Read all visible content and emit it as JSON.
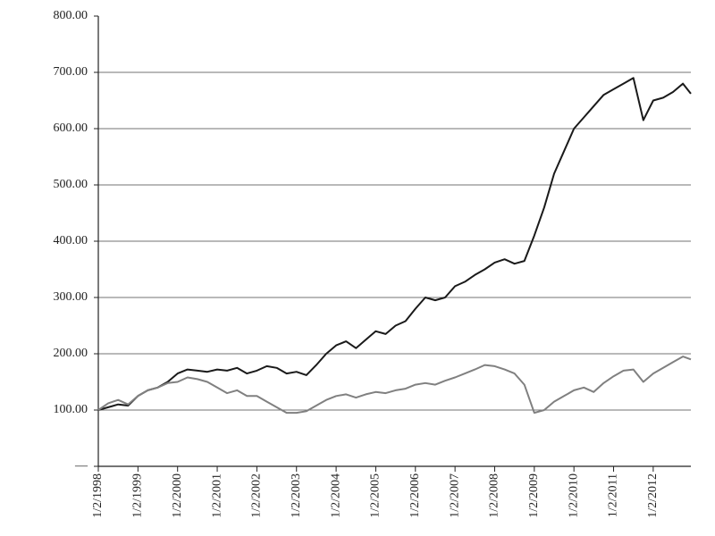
{
  "chart_data": {
    "type": "line",
    "x": [
      1998,
      1998.25,
      1998.5,
      1998.75,
      1999,
      1999.25,
      1999.5,
      1999.75,
      2000,
      2000.25,
      2000.5,
      2000.75,
      2001,
      2001.25,
      2001.5,
      2001.75,
      2002,
      2002.25,
      2002.5,
      2002.75,
      2003,
      2003.25,
      2003.5,
      2003.75,
      2004,
      2004.25,
      2004.5,
      2004.75,
      2005,
      2005.25,
      2005.5,
      2005.75,
      2006,
      2006.25,
      2006.5,
      2006.75,
      2007,
      2007.25,
      2007.5,
      2007.75,
      2008,
      2008.25,
      2008.5,
      2008.75,
      2009,
      2009.25,
      2009.5,
      2009.75,
      2010,
      2010.25,
      2010.5,
      2010.75,
      2011,
      2011.25,
      2011.5,
      2011.75,
      2012,
      2012.25,
      2012.5,
      2012.75,
      2012.95
    ],
    "series": [
      {
        "color": "#1a1a1a",
        "values": [
          100,
          105,
          110,
          108,
          125,
          135,
          140,
          150,
          165,
          172,
          170,
          168,
          172,
          170,
          175,
          165,
          170,
          178,
          175,
          165,
          168,
          162,
          180,
          200,
          215,
          222,
          210,
          225,
          240,
          235,
          250,
          258,
          280,
          300,
          295,
          300,
          320,
          328,
          340,
          350,
          362,
          368,
          360,
          365,
          410,
          460,
          520,
          560,
          600,
          620,
          640,
          660,
          670,
          680,
          690,
          615,
          650,
          655,
          665,
          680,
          662
        ]
      },
      {
        "color": "#808080",
        "values": [
          100,
          112,
          118,
          110,
          125,
          135,
          140,
          148,
          150,
          158,
          155,
          150,
          140,
          130,
          135,
          125,
          125,
          115,
          105,
          95,
          95,
          98,
          108,
          118,
          125,
          128,
          122,
          128,
          132,
          130,
          135,
          138,
          145,
          148,
          145,
          152,
          158,
          165,
          172,
          180,
          178,
          172,
          165,
          145,
          95,
          100,
          115,
          125,
          135,
          140,
          132,
          148,
          160,
          170,
          172,
          150,
          165,
          175,
          185,
          195,
          190
        ]
      }
    ],
    "xlim": [
      1998,
      2012.95
    ],
    "xticks": [
      {
        "value": 1998,
        "label": "1/2/1998"
      },
      {
        "value": 1999,
        "label": "1/2/1999"
      },
      {
        "value": 2000,
        "label": "1/2/2000"
      },
      {
        "value": 2001,
        "label": "1/2/2001"
      },
      {
        "value": 2002,
        "label": "1/2/2002"
      },
      {
        "value": 2003,
        "label": "1/2/2003"
      },
      {
        "value": 2004,
        "label": "1/2/2004"
      },
      {
        "value": 2005,
        "label": "1/2/2005"
      },
      {
        "value": 2006,
        "label": "1/2/2006"
      },
      {
        "value": 2007,
        "label": "1/2/2007"
      },
      {
        "value": 2008,
        "label": "1/2/2008"
      },
      {
        "value": 2009,
        "label": "1/2/2009"
      },
      {
        "value": 2010,
        "label": "1/2/2010"
      },
      {
        "value": 2011,
        "label": "1/2/2011"
      },
      {
        "value": 2012,
        "label": "1/2/2012"
      }
    ],
    "ylim": [
      0,
      800
    ],
    "yticks": [
      {
        "value": 0,
        "label": "—"
      },
      {
        "value": 100,
        "label": "100.00"
      },
      {
        "value": 200,
        "label": "200.00"
      },
      {
        "value": 300,
        "label": "300.00"
      },
      {
        "value": 400,
        "label": "400.00"
      },
      {
        "value": 500,
        "label": "500.00"
      },
      {
        "value": 600,
        "label": "600.00"
      },
      {
        "value": 700,
        "label": "700.00"
      },
      {
        "value": 800,
        "label": "800.00"
      }
    ],
    "grid": true
  }
}
